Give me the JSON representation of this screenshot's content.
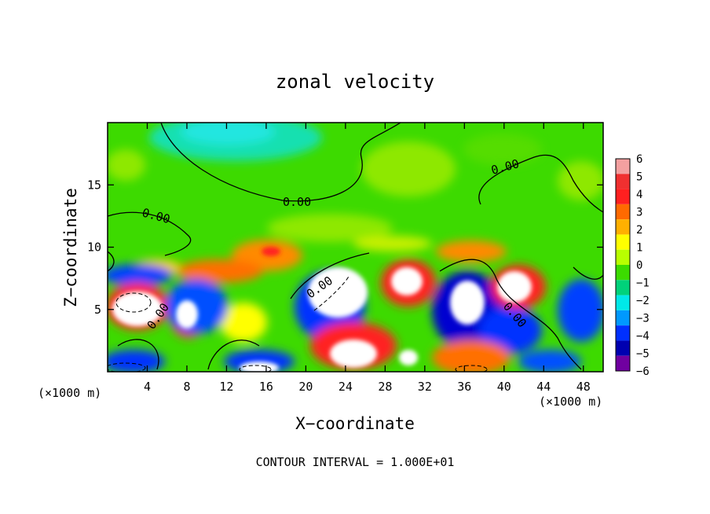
{
  "chart_data": {
    "type": "heatmap",
    "title": "zonal velocity",
    "xlabel": "X−coordinate",
    "ylabel": "Z−coordinate",
    "x_unit_left": "(×1000 m)",
    "x_unit_right": "(×1000 m)",
    "xlim": [
      0,
      50
    ],
    "ylim": [
      0,
      20
    ],
    "x_ticks": [
      "4",
      "8",
      "12",
      "16",
      "20",
      "24",
      "28",
      "32",
      "36",
      "40",
      "44",
      "48"
    ],
    "y_ticks": [
      "5",
      "10",
      "15"
    ],
    "contour_labels": [
      "0.00",
      "0.00",
      "0.00",
      "0.00",
      "0.00",
      "0.00"
    ],
    "footer": "CONTOUR INTERVAL = 1.000E+01",
    "colorbar": {
      "ticks": [
        "6",
        "5",
        "4",
        "3",
        "2",
        "1",
        "0",
        "−1",
        "−2",
        "−3",
        "−4",
        "−5",
        "−6"
      ],
      "colors": [
        "#f3a0a0",
        "#f03030",
        "#ff2020",
        "#ff6a00",
        "#ffb000",
        "#ffff00",
        "#b8ff00",
        "#3cdc00",
        "#00d27a",
        "#00e8e8",
        "#0099ff",
        "#0030ff",
        "#0000b0",
        "#7000a0"
      ]
    },
    "background": "#3dda00"
  }
}
